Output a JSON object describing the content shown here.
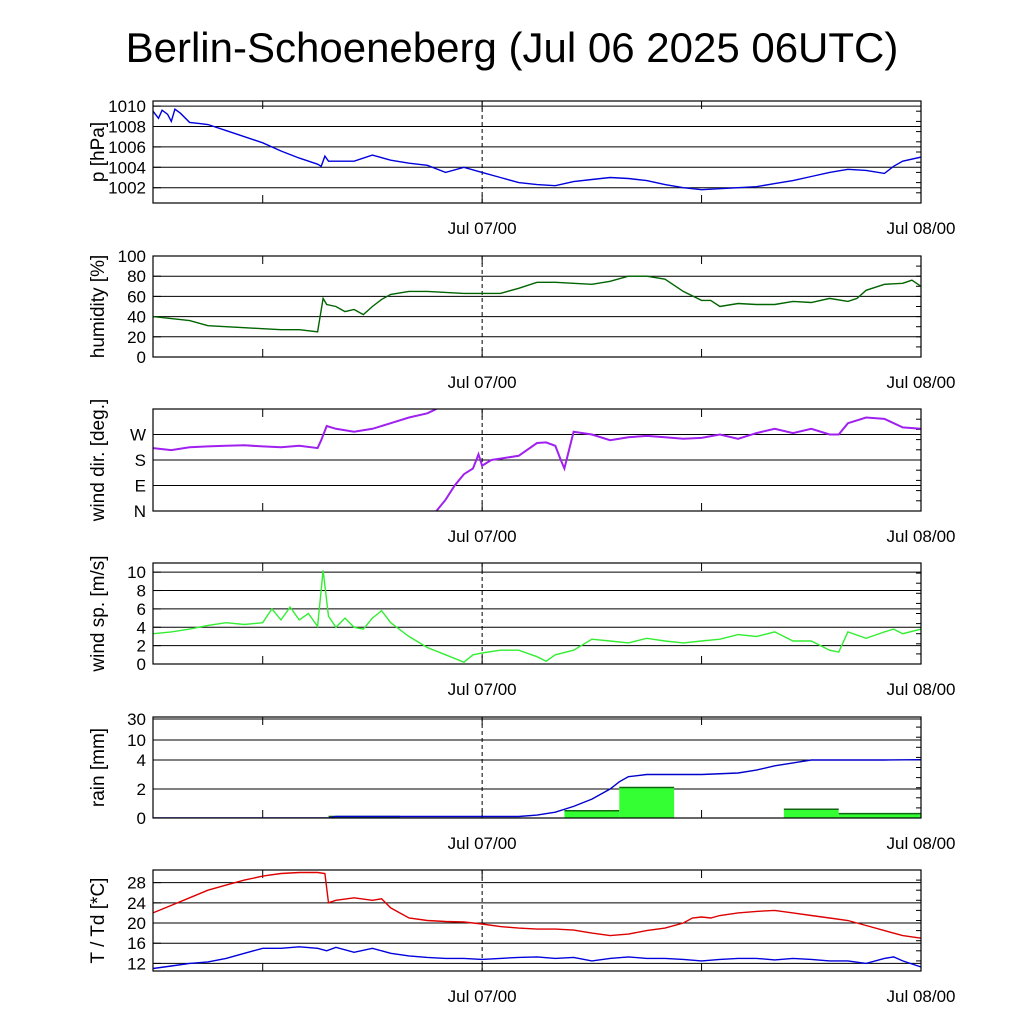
{
  "title": "Berlin-Schoeneberg (Jul 06 2025 06UTC)",
  "x_tick_labels": [
    "Jul 07/00",
    "Jul 08/00"
  ],
  "chart_data": [
    {
      "type": "line",
      "ylabel": "p [hPa]",
      "ylim": [
        1000.5,
        1010.5
      ],
      "yticks": [
        1002,
        1004,
        1006,
        1008,
        1010
      ],
      "ytick_labels": [
        "1002",
        "1004",
        "1006",
        "1008",
        "1010"
      ],
      "xlim_hours": [
        0,
        42
      ],
      "x_tick_labels": [
        "Jul 07/00",
        "Jul 08/00"
      ],
      "series": [
        {
          "color": "#0000dd",
          "x": [
            0,
            0.3,
            0.5,
            0.8,
            1,
            1.2,
            1.5,
            2,
            2.5,
            3,
            4,
            5,
            6,
            7,
            8,
            9,
            9.2,
            9.4,
            9.6,
            10,
            11,
            12,
            13,
            14,
            15,
            16,
            17,
            18,
            19,
            20,
            21,
            22,
            23,
            24,
            25,
            26,
            27,
            28,
            29,
            30,
            31,
            32,
            33,
            34,
            35,
            36,
            37,
            38,
            39,
            40,
            40.5,
            41,
            42
          ],
          "y": [
            1009.5,
            1008.8,
            1009.6,
            1009.2,
            1008.5,
            1009.7,
            1009.3,
            1008.4,
            1008.3,
            1008.2,
            1007.6,
            1007.0,
            1006.4,
            1005.6,
            1004.9,
            1004.3,
            1004.1,
            1005.1,
            1004.6,
            1004.6,
            1004.6,
            1005.2,
            1004.7,
            1004.4,
            1004.2,
            1003.5,
            1004.0,
            1003.5,
            1003.0,
            1002.5,
            1002.3,
            1002.2,
            1002.6,
            1002.8,
            1003.0,
            1002.9,
            1002.7,
            1002.3,
            1002.0,
            1001.8,
            1001.9,
            1002.0,
            1002.1,
            1002.4,
            1002.7,
            1003.1,
            1003.5,
            1003.8,
            1003.7,
            1003.4,
            1004.1,
            1004.6,
            1005.0
          ]
        }
      ]
    },
    {
      "type": "line",
      "ylabel": "humidity [%]",
      "ylim": [
        0,
        100
      ],
      "yticks": [
        0,
        20,
        40,
        60,
        80,
        100
      ],
      "ytick_labels": [
        "0",
        "20",
        "40",
        "60",
        "80",
        "100"
      ],
      "xlim_hours": [
        0,
        42
      ],
      "x_tick_labels": [
        "Jul 07/00",
        "Jul 08/00"
      ],
      "series": [
        {
          "color": "#006400",
          "x": [
            0,
            1,
            2,
            3,
            4,
            5,
            6,
            7,
            8,
            9,
            9.3,
            9.5,
            10,
            10.5,
            11,
            11.5,
            12,
            12.5,
            13,
            14,
            15,
            16,
            17,
            18,
            19,
            20,
            21,
            22,
            23,
            24,
            25,
            26,
            27,
            28,
            29,
            30,
            30.5,
            31,
            32,
            33,
            34,
            35,
            36,
            37,
            38,
            38.5,
            39,
            40,
            41,
            41.5,
            42
          ],
          "y": [
            40,
            38,
            36,
            31,
            30,
            29,
            28,
            27,
            27,
            25,
            58,
            52,
            50,
            45,
            47,
            42,
            50,
            57,
            62,
            65,
            65,
            64,
            63,
            63,
            63,
            68,
            74,
            74,
            73,
            72,
            75,
            80,
            80,
            77,
            65,
            56,
            56,
            50,
            53,
            52,
            52,
            55,
            54,
            58,
            55,
            58,
            66,
            72,
            73,
            76,
            70
          ]
        }
      ]
    },
    {
      "type": "scatter",
      "ylabel": "wind dir. [deg.]",
      "ylim": [
        0,
        360
      ],
      "yticks": [
        0,
        90,
        180,
        270
      ],
      "ytick_labels": [
        "N",
        "E",
        "S",
        "W"
      ],
      "xlim_hours": [
        0,
        42
      ],
      "x_tick_labels": [
        "Jul 07/00",
        "Jul 08/00"
      ],
      "series": [
        {
          "color": "#a020f0",
          "x": [
            0,
            1,
            2,
            3,
            4,
            5,
            6,
            7,
            8,
            9,
            9.2,
            9.5,
            10,
            11,
            12,
            13,
            14,
            15,
            15.5
          ],
          "y": [
            222,
            215,
            225,
            228,
            230,
            232,
            228,
            225,
            230,
            222,
            250,
            300,
            290,
            280,
            290,
            310,
            330,
            345,
            360
          ]
        },
        {
          "color": "#a020f0",
          "x": [
            15.5,
            16,
            16.5,
            17,
            17.5,
            17.8,
            18,
            18.5,
            19,
            20,
            21,
            21.5,
            22,
            22.3,
            22.5,
            23,
            24,
            25,
            26,
            27,
            28,
            29,
            30,
            31,
            32,
            33,
            34,
            35,
            36,
            37,
            37.5,
            38,
            39,
            40,
            41,
            42
          ],
          "y": [
            0,
            40,
            90,
            130,
            150,
            200,
            160,
            180,
            185,
            195,
            240,
            242,
            230,
            180,
            150,
            280,
            270,
            250,
            260,
            265,
            260,
            255,
            258,
            270,
            255,
            275,
            290,
            275,
            290,
            270,
            270,
            310,
            330,
            325,
            295,
            290
          ]
        }
      ]
    },
    {
      "type": "line",
      "ylabel": "wind sp. [m/s]",
      "ylim": [
        0,
        11
      ],
      "yticks": [
        0,
        2,
        4,
        6,
        8,
        10
      ],
      "ytick_labels": [
        "0",
        "2",
        "4",
        "6",
        "8",
        "10"
      ],
      "xlim_hours": [
        0,
        42
      ],
      "x_tick_labels": [
        "Jul 07/00",
        "Jul 08/00"
      ],
      "series": [
        {
          "color": "#33ee33",
          "x": [
            0,
            1,
            2,
            3,
            4,
            5,
            6,
            6.5,
            7,
            7.5,
            8,
            8.5,
            9,
            9.3,
            9.6,
            10,
            10.5,
            11,
            11.5,
            12,
            12.5,
            13,
            14,
            15,
            16,
            17,
            17.5,
            18,
            19,
            20,
            21,
            21.5,
            22,
            23,
            24,
            25,
            26,
            27,
            28,
            29,
            30,
            31,
            32,
            33,
            34,
            35,
            36,
            37,
            37.5,
            38,
            39,
            40,
            40.5,
            41,
            42
          ],
          "y": [
            3.3,
            3.5,
            3.8,
            4.2,
            4.5,
            4.3,
            4.5,
            6,
            4.8,
            6.2,
            4.8,
            5.5,
            4.1,
            10.2,
            5.2,
            4,
            5,
            4,
            3.8,
            5,
            5.8,
            4.5,
            3,
            1.8,
            1,
            0.2,
            1,
            1.2,
            1.5,
            1.5,
            0.8,
            0.3,
            1,
            1.5,
            2.7,
            2.5,
            2.3,
            2.8,
            2.5,
            2.3,
            2.5,
            2.7,
            3.2,
            3,
            3.5,
            2.5,
            2.5,
            1.5,
            1.3,
            3.5,
            2.8,
            3.5,
            3.8,
            3.3,
            3.8
          ]
        }
      ]
    },
    {
      "type": "bar",
      "ylabel": "rain [mm]",
      "yticks": [
        0,
        2,
        4,
        10,
        30
      ],
      "ytick_labels": [
        "0",
        "2",
        "4",
        "10",
        "30"
      ],
      "xlim_hours": [
        0,
        42
      ],
      "x_tick_labels": [
        "Jul 07/00",
        "Jul 08/00"
      ],
      "bars": {
        "color": "#33ff33",
        "x_start": [
          9.6,
          22.5,
          25.5,
          34.5,
          37.5
        ],
        "x_end": [
          13.5,
          25.5,
          28.5,
          37.5,
          42
        ],
        "values": [
          0.1,
          0.5,
          2.1,
          0.6,
          0.3
        ]
      },
      "series": [
        {
          "name": "",
          "color": "#0000cc",
          "x": [
            0,
            9.6,
            10,
            12,
            14,
            18,
            20,
            21,
            22,
            23,
            24,
            25,
            25.5,
            26,
            27,
            28,
            30,
            32,
            33,
            34,
            35,
            36,
            38,
            40,
            42
          ],
          "y": [
            0,
            0,
            0.1,
            0.1,
            0.1,
            0.1,
            0.1,
            0.2,
            0.4,
            0.8,
            1.3,
            2.0,
            2.5,
            2.85,
            3.0,
            3.0,
            3.0,
            3.1,
            3.3,
            3.6,
            3.8,
            4.0,
            4.0,
            4.0,
            4.1
          ]
        }
      ]
    },
    {
      "type": "line",
      "ylabel": "T / Td [*C]",
      "ylim": [
        10.5,
        30.5
      ],
      "yticks": [
        12,
        16,
        20,
        24,
        28
      ],
      "ytick_labels": [
        "12",
        "16",
        "20",
        "24",
        "28"
      ],
      "xlim_hours": [
        0,
        42
      ],
      "x_tick_labels": [
        "Jul 07/00",
        "Jul 08/00"
      ],
      "series": [
        {
          "color": "#dd0000",
          "x": [
            0,
            1,
            2,
            3,
            4,
            5,
            6,
            7,
            8,
            9,
            9.4,
            9.6,
            10,
            11,
            12,
            12.5,
            13,
            14,
            15,
            16,
            17,
            18,
            19,
            20,
            21,
            22,
            23,
            24,
            25,
            26,
            27,
            28,
            29,
            29.5,
            30,
            30.5,
            31,
            32,
            33,
            34,
            35,
            36,
            37,
            38,
            39,
            40,
            41,
            42
          ],
          "y": [
            22,
            23.5,
            25,
            26.5,
            27.5,
            28.5,
            29.3,
            29.8,
            30,
            30,
            29.8,
            24,
            24.5,
            25,
            24.5,
            24.8,
            23,
            21,
            20.5,
            20.3,
            20.2,
            19.8,
            19.3,
            19,
            18.8,
            18.8,
            18.6,
            18,
            17.5,
            17.8,
            18.5,
            19,
            20,
            21,
            21.2,
            21,
            21.5,
            22,
            22.3,
            22.5,
            22,
            21.5,
            21,
            20.5,
            19.5,
            18.5,
            17.5,
            17
          ]
        },
        {
          "color": "#0000dd",
          "x": [
            0,
            1,
            2,
            3,
            4,
            5,
            6,
            7,
            8,
            9,
            9.5,
            10,
            11,
            12,
            13,
            14,
            15,
            16,
            17,
            18,
            19,
            20,
            21,
            22,
            23,
            24,
            25,
            26,
            27,
            28,
            29,
            30,
            31,
            32,
            33,
            34,
            35,
            36,
            37,
            38,
            39,
            40,
            40.5,
            41,
            42
          ],
          "y": [
            11,
            11.5,
            12,
            12.3,
            13,
            14,
            15,
            15,
            15.3,
            15,
            14.5,
            15.2,
            14.2,
            15,
            14,
            13.5,
            13.2,
            13,
            13,
            12.8,
            13,
            13.2,
            13.3,
            13,
            13.2,
            12.5,
            13,
            13.3,
            13,
            13,
            12.8,
            12.5,
            12.8,
            13,
            13,
            12.7,
            13,
            12.8,
            12.5,
            12.5,
            12,
            13,
            13.3,
            12.5,
            11.3
          ]
        }
      ]
    }
  ]
}
